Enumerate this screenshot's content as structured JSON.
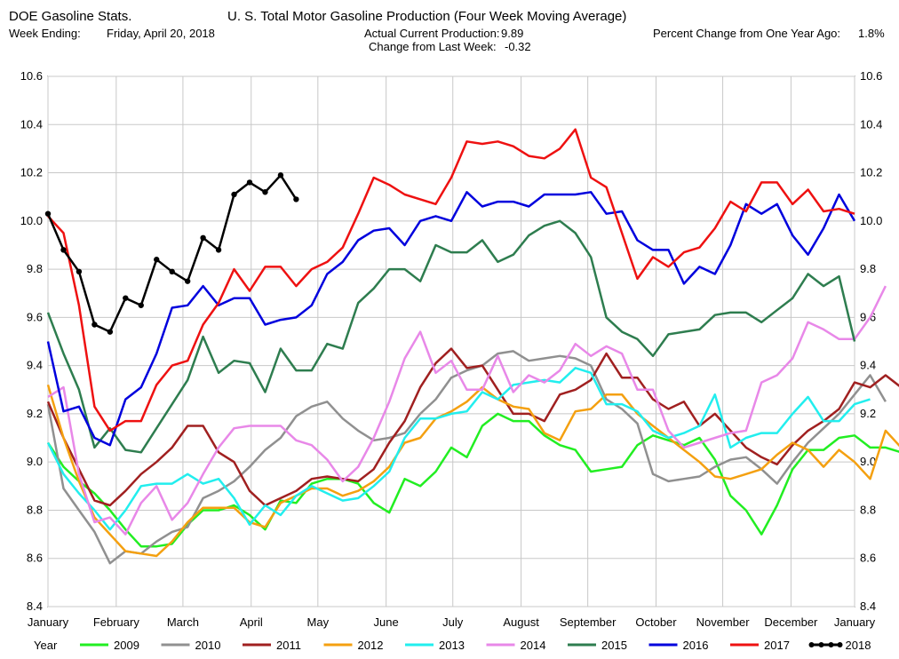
{
  "header": {
    "source": "DOE Gasoline Stats.",
    "week_ending_label": "Week Ending:",
    "week_ending_value": "Friday, April 20, 2018",
    "title": "U. S. Total Motor Gasoline Production (Four Week Moving Average)",
    "actual_label": "Actual Current Production:",
    "actual_value": "9.89",
    "change_label": "Change from Last Week:",
    "change_value": "-0.32",
    "pct_label": "Percent Change from One Year Ago:",
    "pct_value": "1.8%"
  },
  "chart_data": {
    "type": "line",
    "title": "U. S. Total Motor Gasoline Production (Four Week Moving Average)",
    "xlabel": "",
    "ylabel": "",
    "legend_title": "Year",
    "legend_position": "bottom",
    "grid": true,
    "ylim": [
      8.4,
      10.6
    ],
    "yticks": [
      "8.4",
      "8.6",
      "8.8",
      "9.0",
      "9.2",
      "9.4",
      "9.6",
      "9.8",
      "10.0",
      "10.2",
      "10.4",
      "10.6"
    ],
    "x_unit": "week of year",
    "xlim": [
      0,
      52
    ],
    "month_ticks": [
      {
        "label": "January",
        "week": 0
      },
      {
        "label": "February",
        "week": 4.4
      },
      {
        "label": "March",
        "week": 8.7
      },
      {
        "label": "April",
        "week": 13.1
      },
      {
        "label": "May",
        "week": 17.4
      },
      {
        "label": "June",
        "week": 21.8
      },
      {
        "label": "July",
        "week": 26.1
      },
      {
        "label": "August",
        "week": 30.5
      },
      {
        "label": "September",
        "week": 34.8
      },
      {
        "label": "October",
        "week": 39.2
      },
      {
        "label": "November",
        "week": 43.5
      },
      {
        "label": "December",
        "week": 47.9
      },
      {
        "label": "January",
        "week": 52.2
      }
    ],
    "series": [
      {
        "name": "2009",
        "color": "#22ee22",
        "marker": false,
        "x_start": 0,
        "values": [
          9.08,
          8.98,
          8.92,
          8.87,
          8.8,
          8.72,
          8.65,
          8.65,
          8.66,
          8.74,
          8.8,
          8.8,
          8.82,
          8.78,
          8.72,
          8.84,
          8.83,
          8.91,
          8.93,
          8.93,
          8.91,
          8.83,
          8.79,
          8.93,
          8.9,
          8.96,
          9.06,
          9.02,
          9.15,
          9.2,
          9.17,
          9.17,
          9.11,
          9.07,
          9.05,
          8.96,
          8.97,
          8.98,
          9.07,
          9.11,
          9.09,
          9.07,
          9.1,
          9.01,
          8.86,
          8.8,
          8.7,
          8.82,
          8.97,
          9.05,
          9.05,
          9.1,
          9.11,
          9.06,
          9.06,
          9.04
        ]
      },
      {
        "name": "2010",
        "color": "#909090",
        "marker": false,
        "x_start": 0,
        "values": [
          9.24,
          8.89,
          8.8,
          8.71,
          8.58,
          8.63,
          8.62,
          8.67,
          8.71,
          8.73,
          8.85,
          8.88,
          8.92,
          8.98,
          9.05,
          9.1,
          9.19,
          9.23,
          9.25,
          9.18,
          9.13,
          9.09,
          9.1,
          9.12,
          9.2,
          9.26,
          9.35,
          9.38,
          9.4,
          9.45,
          9.46,
          9.42,
          9.43,
          9.44,
          9.43,
          9.4,
          9.26,
          9.22,
          9.16,
          8.95,
          8.92,
          8.93,
          8.94,
          8.98,
          9.01,
          9.02,
          8.97,
          8.91,
          9.0,
          9.08,
          9.14,
          9.2,
          9.28,
          9.36,
          9.25
        ]
      },
      {
        "name": "2011",
        "color": "#a02020",
        "marker": false,
        "x_start": 0,
        "values": [
          9.25,
          9.1,
          8.97,
          8.84,
          8.82,
          8.88,
          8.95,
          9.0,
          9.06,
          9.15,
          9.15,
          9.04,
          9.0,
          8.88,
          8.82,
          8.85,
          8.88,
          8.93,
          8.94,
          8.93,
          8.92,
          8.97,
          9.08,
          9.17,
          9.31,
          9.41,
          9.47,
          9.39,
          9.4,
          9.3,
          9.2,
          9.2,
          9.17,
          9.28,
          9.3,
          9.34,
          9.45,
          9.35,
          9.35,
          9.26,
          9.22,
          9.25,
          9.15,
          9.2,
          9.13,
          9.06,
          9.02,
          8.99,
          9.07,
          9.13,
          9.17,
          9.22,
          9.33,
          9.31,
          9.36,
          9.31
        ]
      },
      {
        "name": "2012",
        "color": "#f4a010",
        "marker": false,
        "x_start": 0,
        "values": [
          9.32,
          9.1,
          8.92,
          8.77,
          8.7,
          8.63,
          8.62,
          8.61,
          8.67,
          8.75,
          8.81,
          8.81,
          8.81,
          8.75,
          8.73,
          8.83,
          8.86,
          8.89,
          8.89,
          8.86,
          8.88,
          8.92,
          8.98,
          9.08,
          9.1,
          9.18,
          9.21,
          9.25,
          9.31,
          9.26,
          9.23,
          9.22,
          9.12,
          9.09,
          9.21,
          9.22,
          9.28,
          9.28,
          9.2,
          9.15,
          9.1,
          9.05,
          9.0,
          8.94,
          8.93,
          8.95,
          8.97,
          9.03,
          9.08,
          9.05,
          8.98,
          9.05,
          9.0,
          8.93,
          9.13,
          9.06
        ]
      },
      {
        "name": "2013",
        "color": "#22eeee",
        "marker": false,
        "x_start": 0,
        "values": [
          9.08,
          8.95,
          8.87,
          8.8,
          8.72,
          8.8,
          8.9,
          8.91,
          8.91,
          8.95,
          8.91,
          8.93,
          8.85,
          8.74,
          8.82,
          8.78,
          8.86,
          8.9,
          8.87,
          8.84,
          8.85,
          8.9,
          8.96,
          9.1,
          9.18,
          9.18,
          9.2,
          9.21,
          9.29,
          9.26,
          9.32,
          9.33,
          9.34,
          9.33,
          9.39,
          9.37,
          9.24,
          9.24,
          9.21,
          9.13,
          9.1,
          9.12,
          9.15,
          9.28,
          9.06,
          9.1,
          9.12,
          9.12,
          9.2,
          9.27,
          9.17,
          9.17,
          9.24,
          9.26
        ]
      },
      {
        "name": "2014",
        "color": "#e888e8",
        "marker": false,
        "x_start": 0,
        "values": [
          9.27,
          9.31,
          8.95,
          8.75,
          8.77,
          8.7,
          8.83,
          8.9,
          8.76,
          8.83,
          8.95,
          9.06,
          9.14,
          9.15,
          9.15,
          9.15,
          9.09,
          9.07,
          9.01,
          8.92,
          8.98,
          9.1,
          9.25,
          9.43,
          9.54,
          9.37,
          9.42,
          9.3,
          9.3,
          9.44,
          9.29,
          9.36,
          9.33,
          9.38,
          9.49,
          9.44,
          9.48,
          9.45,
          9.3,
          9.3,
          9.13,
          9.06,
          9.08,
          9.1,
          9.12,
          9.13,
          9.33,
          9.36,
          9.43,
          9.58,
          9.55,
          9.51,
          9.51,
          9.6,
          9.73
        ]
      },
      {
        "name": "2015",
        "color": "#2e7d4f",
        "marker": false,
        "x_start": 0,
        "values": [
          9.62,
          9.45,
          9.3,
          9.06,
          9.14,
          9.05,
          9.04,
          9.14,
          9.24,
          9.34,
          9.52,
          9.37,
          9.42,
          9.41,
          9.29,
          9.47,
          9.38,
          9.38,
          9.49,
          9.47,
          9.66,
          9.72,
          9.8,
          9.8,
          9.75,
          9.9,
          9.87,
          9.87,
          9.92,
          9.83,
          9.86,
          9.94,
          9.98,
          10.0,
          9.95,
          9.85,
          9.6,
          9.54,
          9.51,
          9.44,
          9.53,
          9.54,
          9.55,
          9.61,
          9.62,
          9.62,
          9.58,
          9.63,
          9.68,
          9.78,
          9.73,
          9.77,
          9.5
        ]
      },
      {
        "name": "2016",
        "color": "#0000dd",
        "marker": false,
        "x_start": 0,
        "values": [
          9.5,
          9.21,
          9.23,
          9.1,
          9.07,
          9.26,
          9.31,
          9.45,
          9.64,
          9.65,
          9.73,
          9.65,
          9.68,
          9.68,
          9.57,
          9.59,
          9.6,
          9.65,
          9.78,
          9.83,
          9.92,
          9.96,
          9.97,
          9.9,
          10.0,
          10.02,
          10.0,
          10.12,
          10.06,
          10.08,
          10.08,
          10.06,
          10.11,
          10.11,
          10.11,
          10.12,
          10.03,
          10.04,
          9.92,
          9.88,
          9.88,
          9.74,
          9.81,
          9.78,
          9.9,
          10.07,
          10.03,
          10.07,
          9.94,
          9.86,
          9.97,
          10.11,
          10.0
        ]
      },
      {
        "name": "2017",
        "color": "#ee1111",
        "marker": false,
        "x_start": 0,
        "values": [
          10.02,
          9.95,
          9.65,
          9.23,
          9.13,
          9.17,
          9.17,
          9.32,
          9.4,
          9.42,
          9.57,
          9.66,
          9.8,
          9.71,
          9.81,
          9.81,
          9.73,
          9.8,
          9.83,
          9.89,
          10.03,
          10.18,
          10.15,
          10.11,
          10.09,
          10.07,
          10.18,
          10.33,
          10.32,
          10.33,
          10.31,
          10.27,
          10.26,
          10.3,
          10.38,
          10.18,
          10.14,
          9.95,
          9.76,
          9.85,
          9.81,
          9.87,
          9.89,
          9.97,
          10.08,
          10.04,
          10.16,
          10.16,
          10.07,
          10.13,
          10.04,
          10.05,
          10.03
        ]
      },
      {
        "name": "2018",
        "color": "#000000",
        "marker": true,
        "x_start": 0,
        "values": [
          10.03,
          9.88,
          9.79,
          9.57,
          9.54,
          9.68,
          9.65,
          9.84,
          9.79,
          9.75,
          9.93,
          9.88,
          10.11,
          10.16,
          10.12,
          10.19,
          10.09
        ]
      }
    ]
  }
}
